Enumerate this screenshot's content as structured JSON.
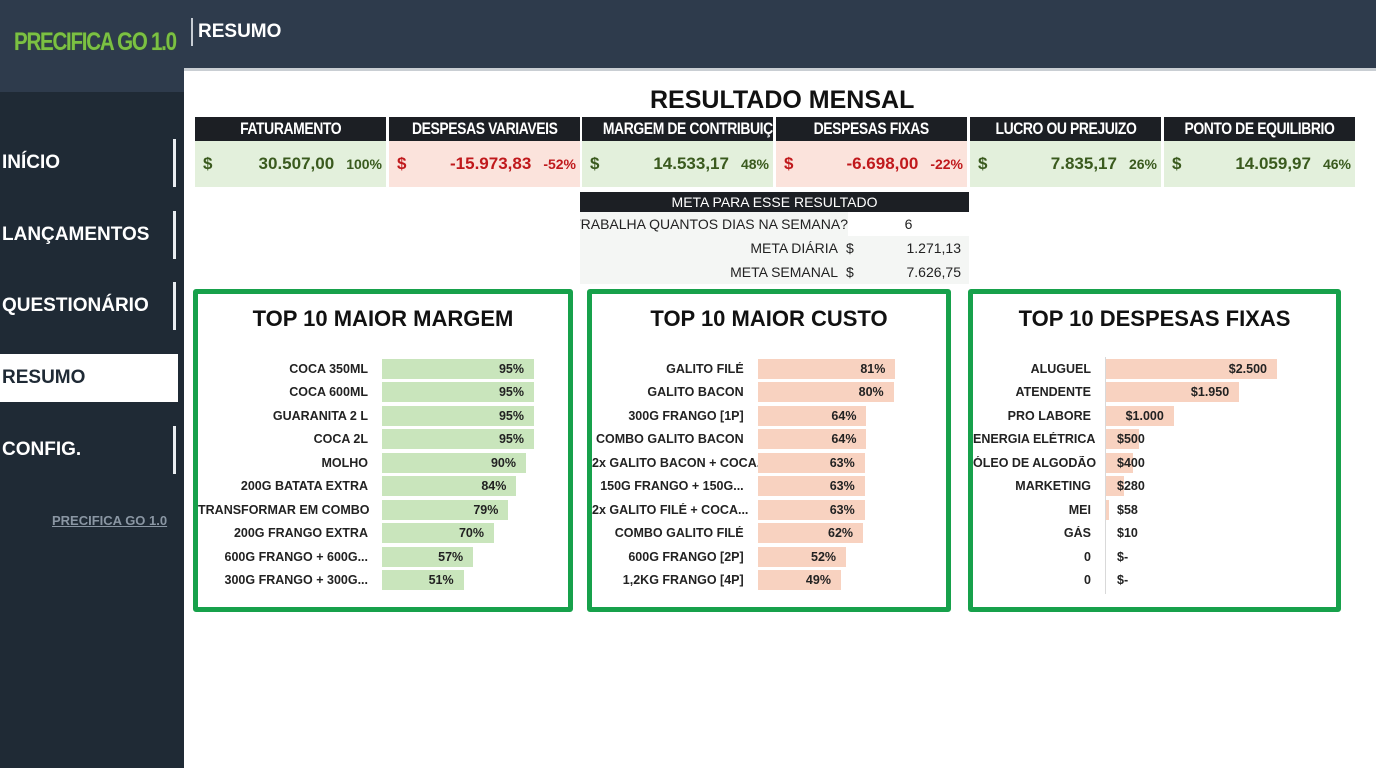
{
  "app": {
    "logo": "PRECIFICA GO 1.0",
    "page_title": "RESUMO"
  },
  "sidebar": {
    "items": [
      {
        "label": "INÍCIO",
        "active": false
      },
      {
        "label": "LANÇAMENTOS",
        "active": false
      },
      {
        "label": "QUESTIONÁRIO",
        "active": false
      },
      {
        "label": "RESUMO",
        "active": true
      },
      {
        "label": "CONFIG.",
        "active": false
      }
    ],
    "footer_link": "PRECIFICA GO 1.0"
  },
  "main": {
    "title": "RESULTADO MENSAL",
    "kpis": [
      {
        "label": "FATURAMENTO",
        "currency": "$",
        "value": "30.507,00",
        "pct": "100%",
        "tone": "pos"
      },
      {
        "label": "DESPESAS VARIAVEIS",
        "currency": "$",
        "value": "-15.973,83",
        "pct": "-52%",
        "tone": "neg"
      },
      {
        "label": "MARGEM DE CONTRIBUIÇÃO",
        "currency": "$",
        "value": "14.533,17",
        "pct": "48%",
        "tone": "pos"
      },
      {
        "label": "DESPESAS FIXAS",
        "currency": "$",
        "value": "-6.698,00",
        "pct": "-22%",
        "tone": "neg"
      },
      {
        "label": "LUCRO OU PREJUIZO",
        "currency": "$",
        "value": "7.835,17",
        "pct": "26%",
        "tone": "pos"
      },
      {
        "label": "PONTO DE EQUILIBRIO",
        "currency": "$",
        "value": "14.059,97",
        "pct": "46%",
        "tone": "pos"
      }
    ],
    "meta": {
      "header": "META PARA ESSE RESULTADO",
      "question": "TRABALHA QUANTOS DIAS NA SEMANA?",
      "days": "6",
      "daily_label": "META DIÁRIA",
      "daily_currency": "$",
      "daily_value": "1.271,13",
      "weekly_label": "META SEMANAL",
      "weekly_currency": "$",
      "weekly_value": "7.626,75"
    },
    "panels": {
      "margem": {
        "title": "TOP 10 MAIOR MARGEM",
        "rows": [
          {
            "label": "COCA 350ML",
            "value": 95,
            "display": "95%"
          },
          {
            "label": "COCA 600ML",
            "value": 95,
            "display": "95%"
          },
          {
            "label": "GUARANITA 2 L",
            "value": 95,
            "display": "95%"
          },
          {
            "label": "COCA 2L",
            "value": 95,
            "display": "95%"
          },
          {
            "label": "MOLHO",
            "value": 90,
            "display": "90%"
          },
          {
            "label": "200G BATATA EXTRA",
            "value": 84,
            "display": "84%"
          },
          {
            "label": "TRANSFORMAR EM COMBO",
            "value": 79,
            "display": "79%"
          },
          {
            "label": "200G FRANGO EXTRA",
            "value": 70,
            "display": "70%"
          },
          {
            "label": "600G FRANGO + 600G...",
            "value": 57,
            "display": "57%"
          },
          {
            "label": "300G FRANGO + 300G...",
            "value": 51,
            "display": "51%"
          }
        ]
      },
      "custo": {
        "title": "TOP 10 MAIOR CUSTO",
        "rows": [
          {
            "label": "GALITO FILÉ",
            "value": 81,
            "display": "81%"
          },
          {
            "label": "GALITO BACON",
            "value": 80,
            "display": "80%"
          },
          {
            "label": "300G FRANGO [1P]",
            "value": 64,
            "display": "64%"
          },
          {
            "label": "COMBO GALITO BACON",
            "value": 64,
            "display": "64%"
          },
          {
            "label": "2x GALITO BACON + COCA...",
            "value": 63,
            "display": "63%"
          },
          {
            "label": "150G FRANGO + 150G...",
            "value": 63,
            "display": "63%"
          },
          {
            "label": "2x GALITO FILÉ + COCA...",
            "value": 63,
            "display": "63%"
          },
          {
            "label": "COMBO GALITO FILÉ",
            "value": 62,
            "display": "62%"
          },
          {
            "label": "600G FRANGO [2P]",
            "value": 52,
            "display": "52%"
          },
          {
            "label": "1,2KG FRANGO [4P]",
            "value": 49,
            "display": "49%"
          }
        ]
      },
      "despesas": {
        "title": "TOP 10 DESPESAS FIXAS",
        "rows": [
          {
            "label": "ALUGUEL",
            "value": 2500,
            "display": "$2.500"
          },
          {
            "label": "ATENDENTE",
            "value": 1950,
            "display": "$1.950"
          },
          {
            "label": "PRO LABORE",
            "value": 1000,
            "display": "$1.000"
          },
          {
            "label": "ENERGIA ELÉTRICA",
            "value": 500,
            "display": "$500"
          },
          {
            "label": "ÓLEO DE ALGODÃO",
            "value": 400,
            "display": "$400"
          },
          {
            "label": "MARKETING",
            "value": 280,
            "display": "$280"
          },
          {
            "label": "MEI",
            "value": 58,
            "display": "$58"
          },
          {
            "label": "GÁS",
            "value": 10,
            "display": "$10"
          },
          {
            "label": "0",
            "value": 0,
            "display": "$-"
          },
          {
            "label": "0",
            "value": 0,
            "display": "$-"
          }
        ]
      }
    }
  },
  "colors": {
    "header_bg": "#2e3b4c",
    "sidebar_bg": "#1f2a35",
    "logo_green": "#7bc043",
    "panel_border": "#17a14b",
    "positive_bg": "#e3f0dc",
    "negative_bg": "#fbe3dc",
    "bar_green": "#c9e5bc",
    "bar_salmon": "#f8d2c0"
  }
}
